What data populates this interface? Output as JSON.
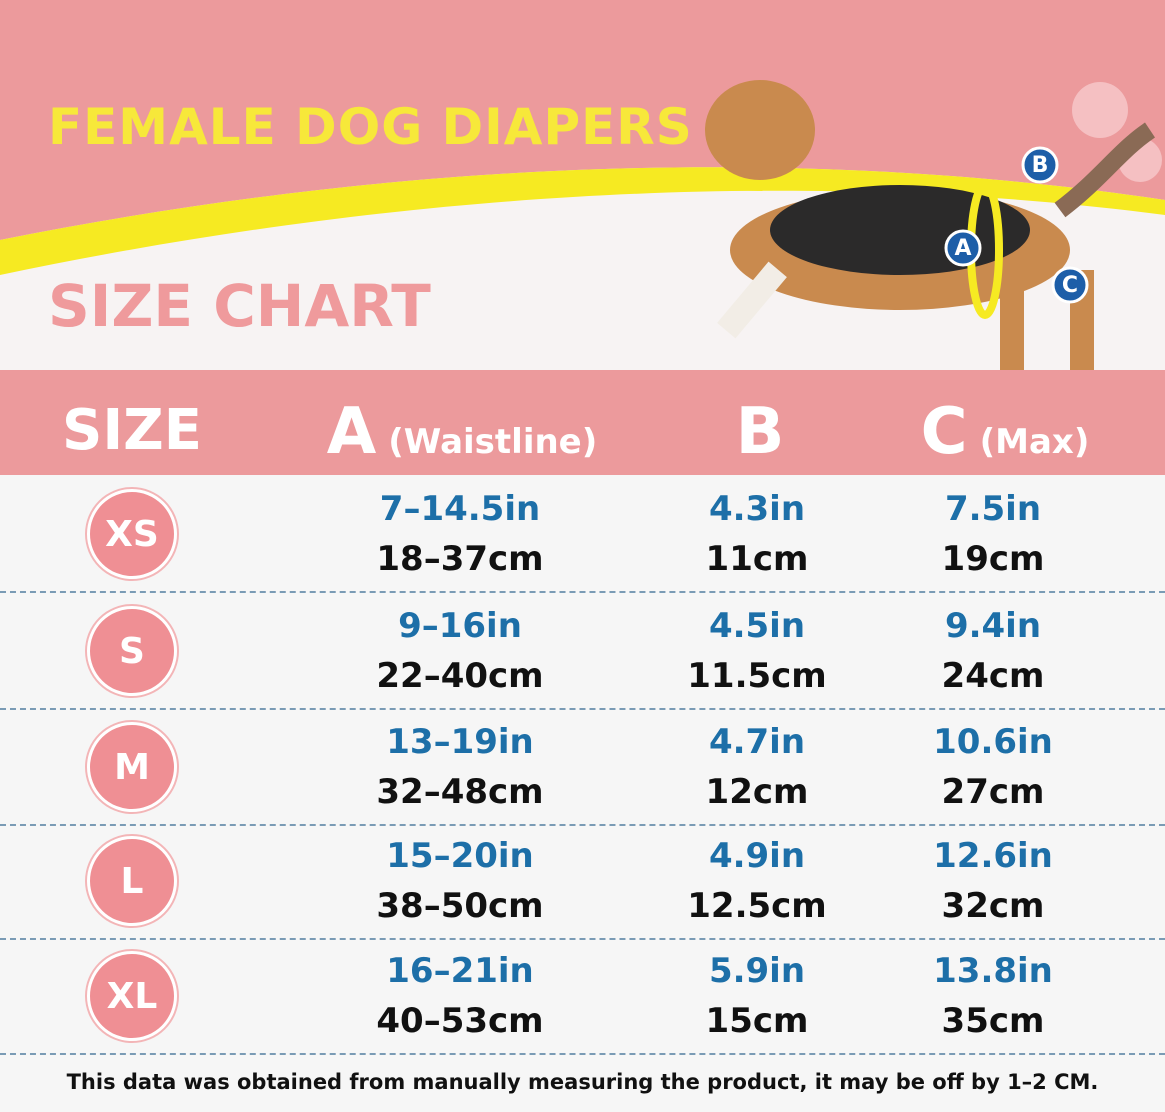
{
  "header": {
    "title": "FEMALE DOG DIAPERS",
    "subtitle": "SIZE CHART"
  },
  "diagram": {
    "markers": [
      "A",
      "B",
      "C"
    ]
  },
  "table": {
    "columns": [
      {
        "label": "SIZE"
      },
      {
        "label": "A",
        "note": "(Waistline)"
      },
      {
        "label": "B"
      },
      {
        "label": "C",
        "note": "(Max)"
      }
    ],
    "rows": [
      [
        "XS",
        "7–14.5in",
        "18–37cm",
        "4.3in",
        "11cm",
        "7.5in",
        "19cm"
      ],
      [
        "S",
        "9–16in",
        "22–40cm",
        "4.5in",
        "11.5cm",
        "9.4in",
        "24cm"
      ],
      [
        "M",
        "13–19in",
        "32–48cm",
        "4.7in",
        "12cm",
        "10.6in",
        "27cm"
      ],
      [
        "L",
        "15–20in",
        "38–50cm",
        "4.9in",
        "12.5cm",
        "12.6in",
        "32cm"
      ],
      [
        "XL",
        "16–21in",
        "40–53cm",
        "5.9in",
        "15cm",
        "13.8in",
        "35cm"
      ]
    ]
  },
  "footer": {
    "note": "This data was obtained from manually measuring the product, it may be off by 1–2 CM."
  }
}
